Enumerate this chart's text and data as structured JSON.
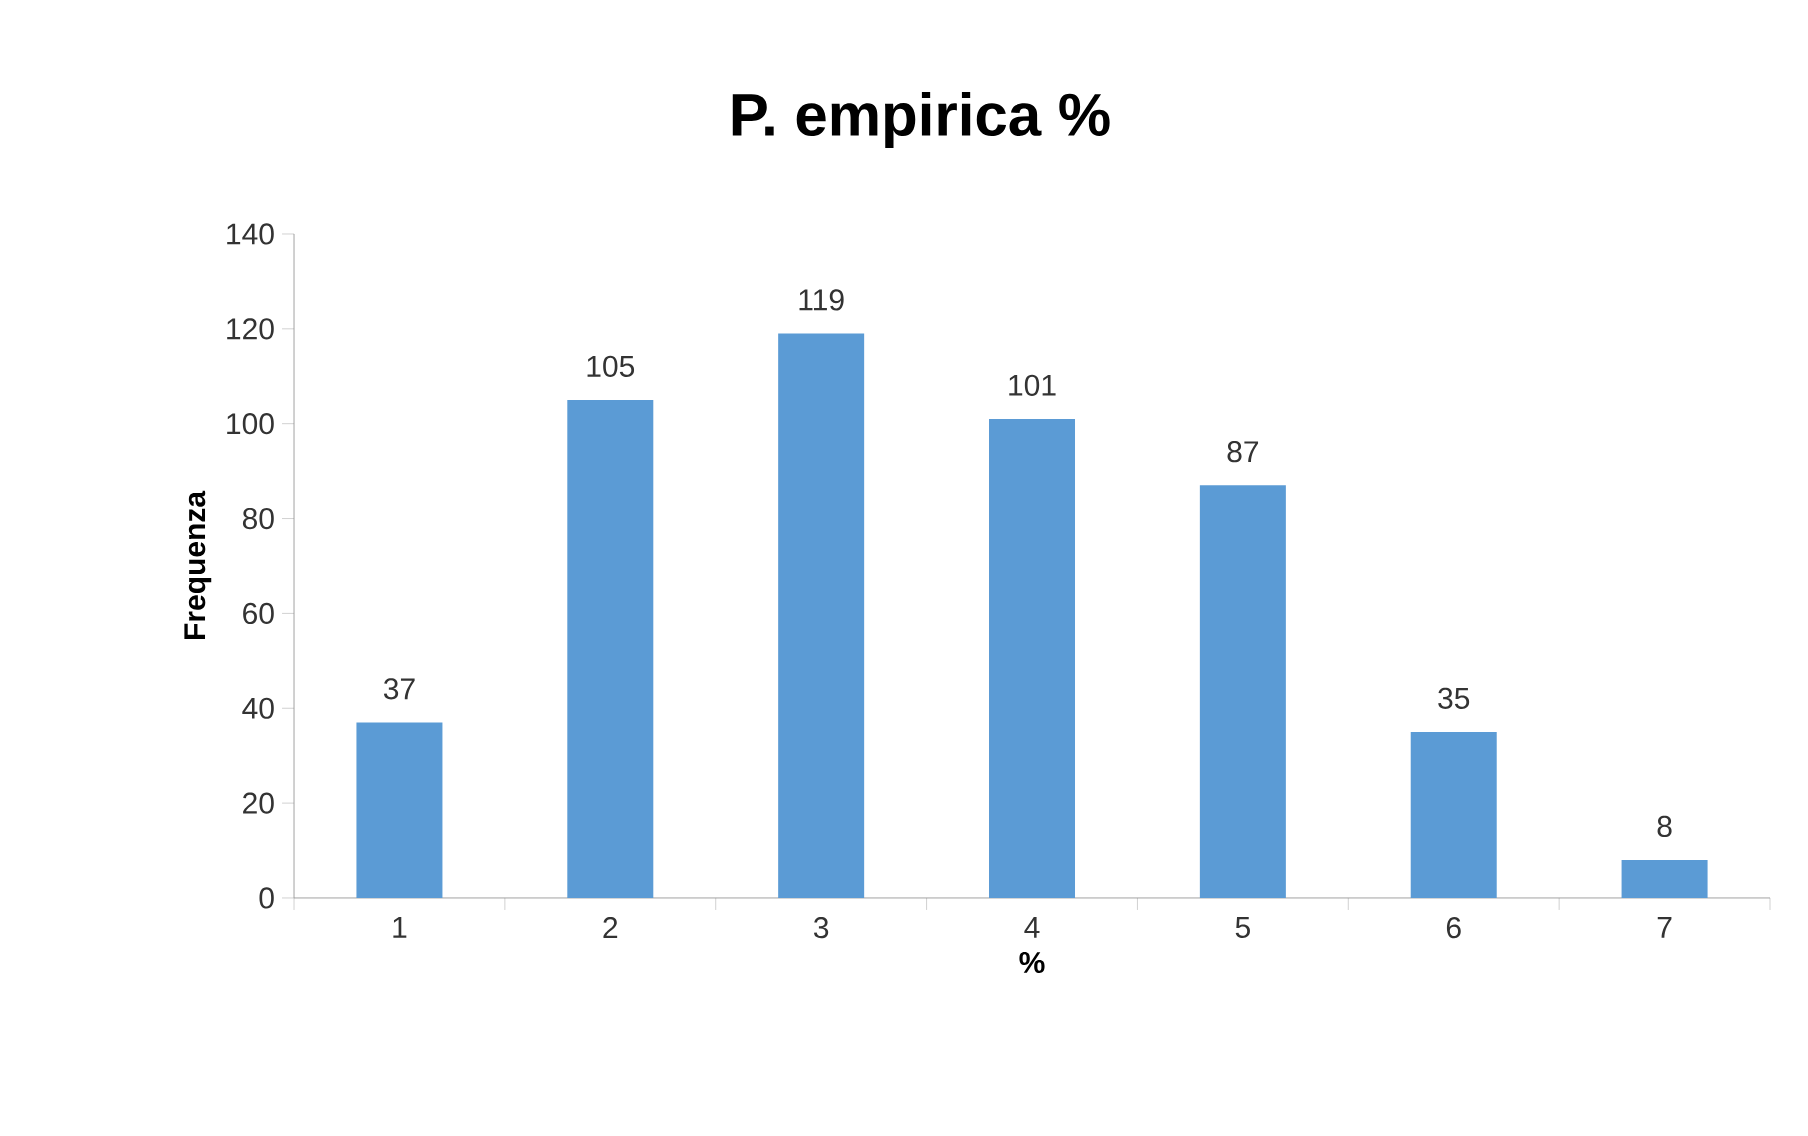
{
  "chart_data": {
    "type": "bar",
    "title": "P. empirica %",
    "xlabel": "%",
    "ylabel": "Frequenza",
    "categories": [
      "1",
      "2",
      "3",
      "4",
      "5",
      "6",
      "7"
    ],
    "values": [
      37,
      105,
      119,
      101,
      87,
      35,
      8
    ],
    "color": "#5b9bd5",
    "ylim": [
      0,
      140
    ],
    "yticks": [
      0,
      20,
      40,
      60,
      80,
      100,
      120,
      140
    ],
    "data_labels": true,
    "grid": false
  }
}
